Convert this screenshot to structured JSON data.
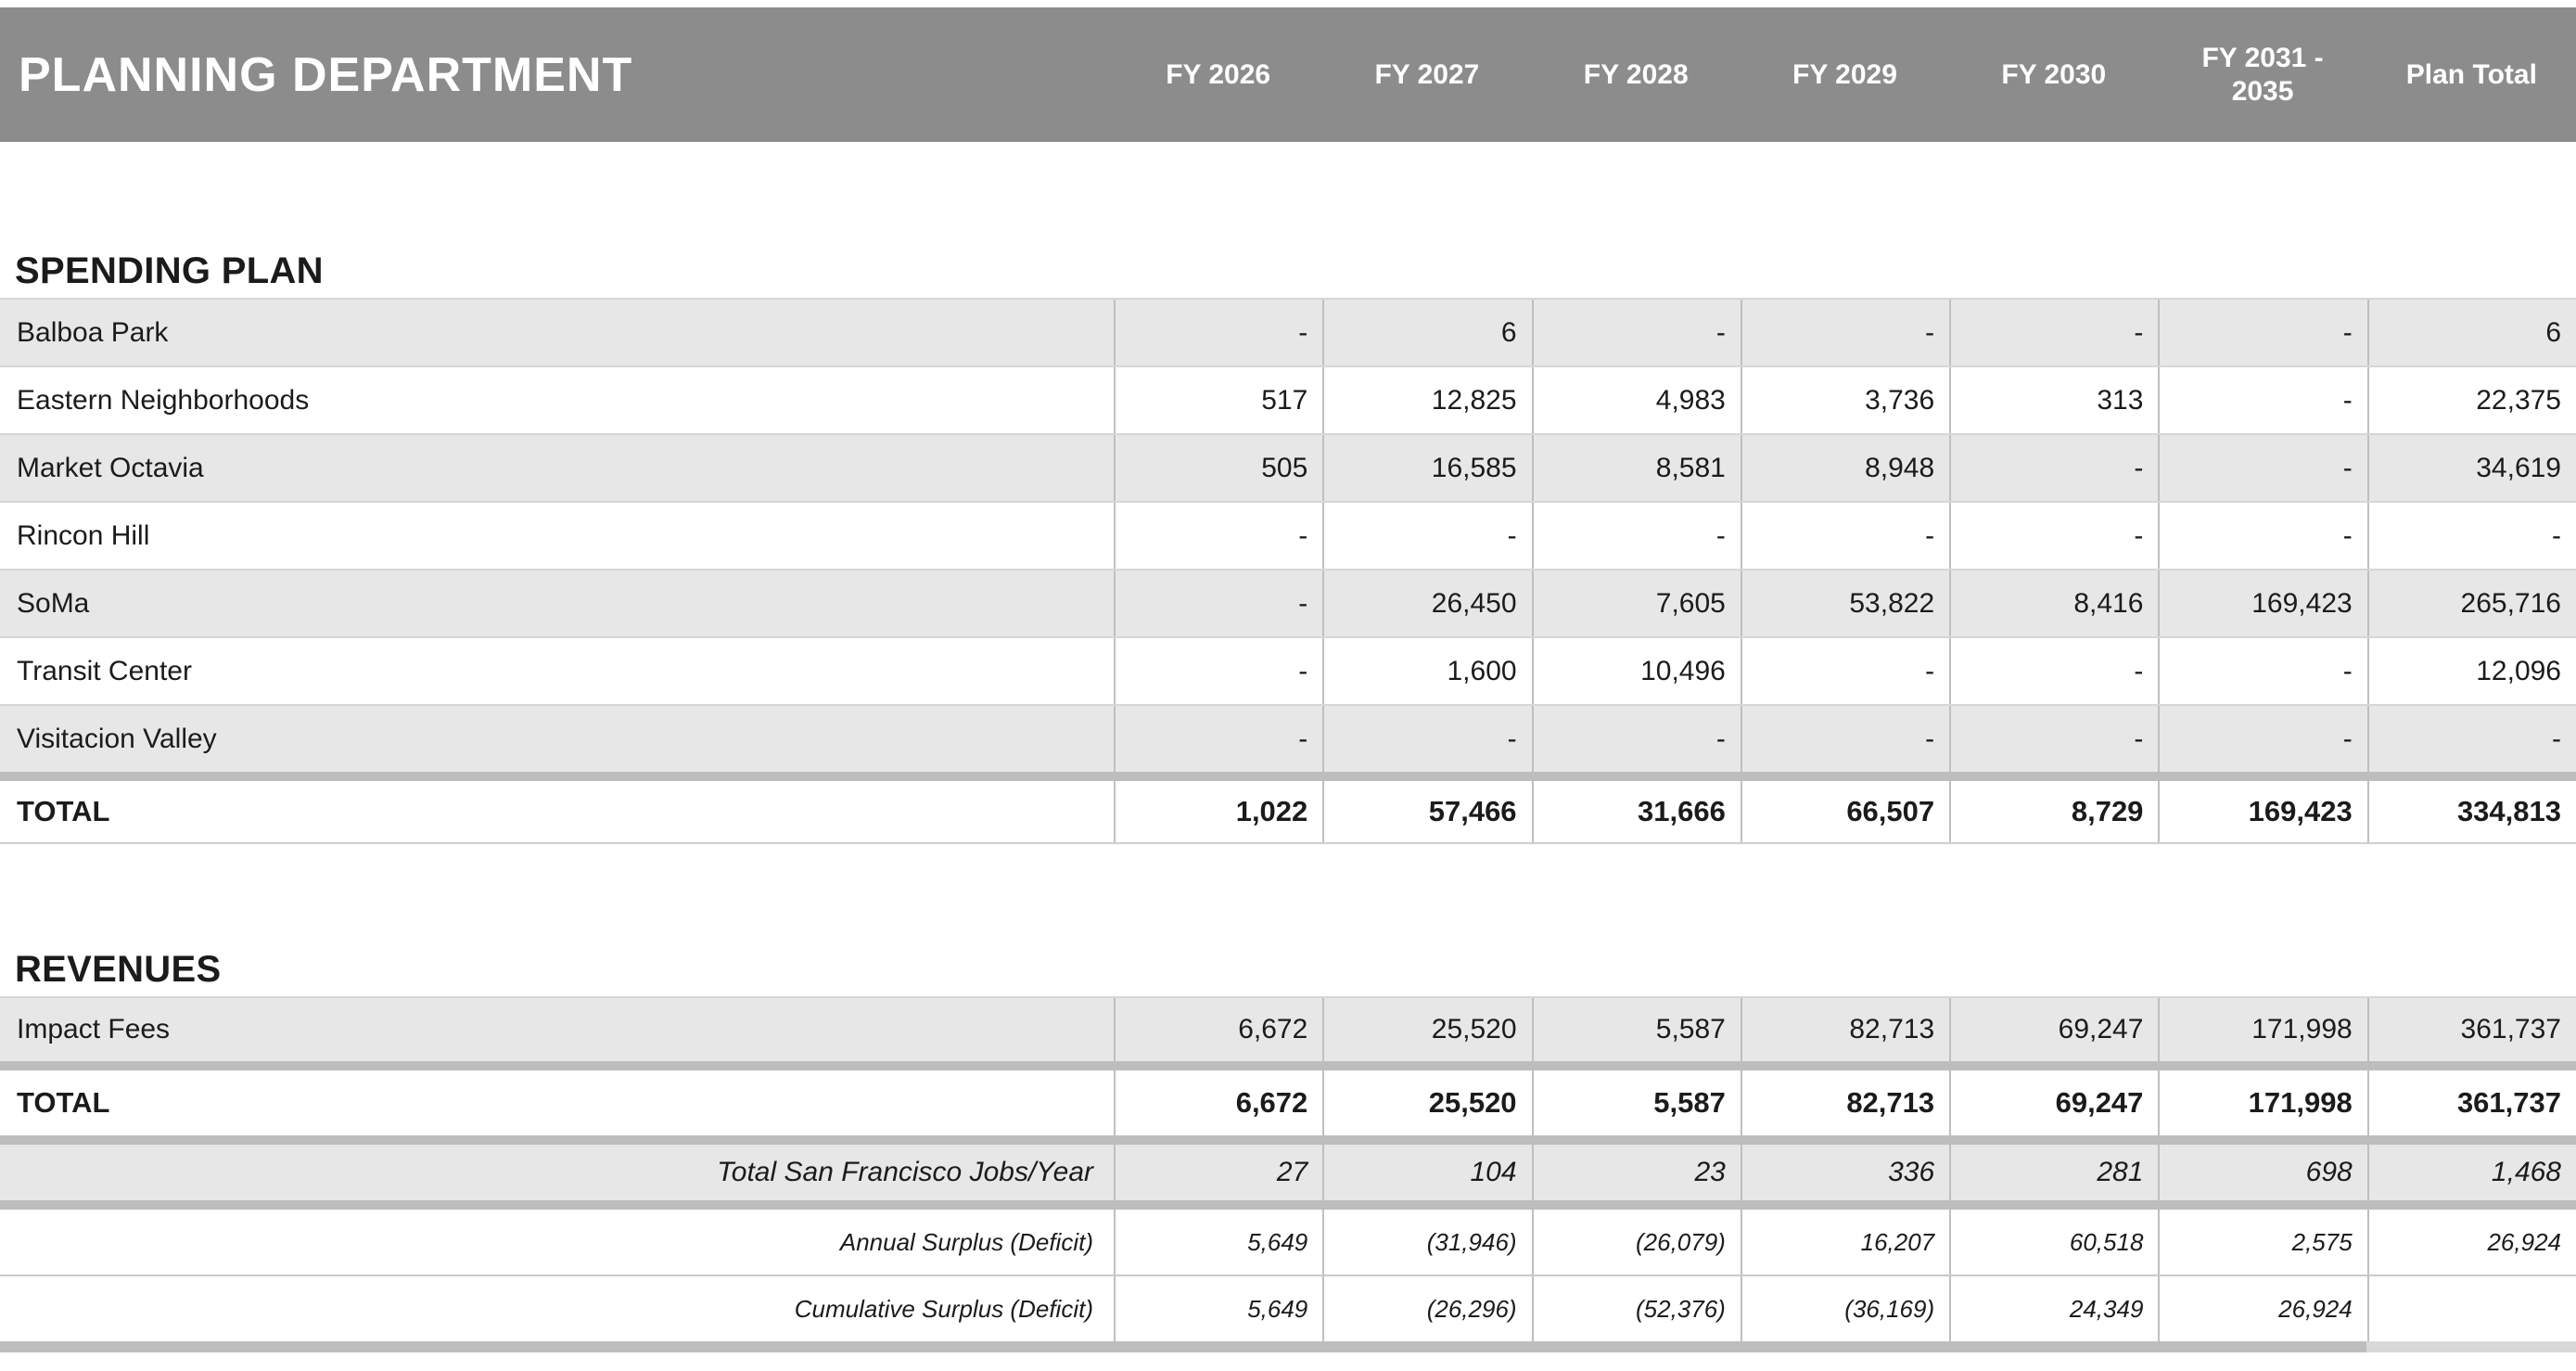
{
  "header": {
    "title": "PLANNING DEPARTMENT",
    "columns": [
      "FY 2026",
      "FY 2027",
      "FY 2028",
      "FY 2029",
      "FY 2030",
      "FY 2031 - 2035",
      "Plan Total"
    ]
  },
  "colors": {
    "header_bg": "#8c8c8c",
    "stripe": "#e7e7e7",
    "band": "#bdbdbd",
    "band_light": "#d9d9d9",
    "grid_line": "#bfbfbf",
    "row_line": "#d6d6d6",
    "text": "#1b1b1b"
  },
  "sections": [
    {
      "id": "spending",
      "title": "SPENDING PLAN",
      "rows": [
        {
          "label": "Balboa Park",
          "values": [
            "-",
            "6",
            "-",
            "-",
            "-",
            "-",
            "6"
          ]
        },
        {
          "label": "Eastern Neighborhoods",
          "values": [
            "517",
            "12,825",
            "4,983",
            "3,736",
            "313",
            "-",
            "22,375"
          ]
        },
        {
          "label": "Market Octavia",
          "values": [
            "505",
            "16,585",
            "8,581",
            "8,948",
            "-",
            "-",
            "34,619"
          ]
        },
        {
          "label": "Rincon Hill",
          "values": [
            "-",
            "-",
            "-",
            "-",
            "-",
            "-",
            "-"
          ]
        },
        {
          "label": "SoMa",
          "values": [
            "-",
            "26,450",
            "7,605",
            "53,822",
            "8,416",
            "169,423",
            "265,716"
          ]
        },
        {
          "label": "Transit Center",
          "values": [
            "-",
            "1,600",
            "10,496",
            "-",
            "-",
            "-",
            "12,096"
          ]
        },
        {
          "label": "Visitacion Valley",
          "values": [
            "-",
            "-",
            "-",
            "-",
            "-",
            "-",
            "-"
          ]
        }
      ],
      "total": {
        "label": "TOTAL",
        "values": [
          "1,022",
          "57,466",
          "31,666",
          "66,507",
          "8,729",
          "169,423",
          "334,813"
        ]
      }
    },
    {
      "id": "revenues",
      "title": "REVENUES",
      "rows": [
        {
          "label": "Impact Fees",
          "values": [
            "6,672",
            "25,520",
            "5,587",
            "82,713",
            "69,247",
            "171,998",
            "361,737"
          ]
        }
      ],
      "total": {
        "label": "TOTAL",
        "values": [
          "6,672",
          "25,520",
          "5,587",
          "82,713",
          "69,247",
          "171,998",
          "361,737"
        ]
      }
    }
  ],
  "summary_rows": [
    {
      "label": "Total San Francisco Jobs/Year",
      "values": [
        "27",
        "104",
        "23",
        "336",
        "281",
        "698",
        "1,468"
      ]
    },
    {
      "label": "Annual Surplus (Deficit)",
      "values": [
        "5,649",
        "(31,946)",
        "(26,079)",
        "16,207",
        "60,518",
        "2,575",
        "26,924"
      ]
    },
    {
      "label": "Cumulative Surplus (Deficit)",
      "values": [
        "5,649",
        "(26,296)",
        "(52,376)",
        "(36,169)",
        "24,349",
        "26,924",
        ""
      ]
    }
  ]
}
